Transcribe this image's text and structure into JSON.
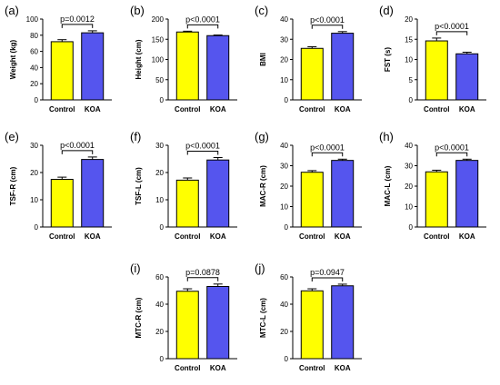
{
  "colors": {
    "control": "#ffff00",
    "koa": "#5555ee",
    "stroke": "#000000"
  },
  "chart_data": [
    {
      "type": "bar",
      "label": "(a)",
      "ylabel": "Weight (kg)",
      "categories": [
        "Control",
        "KOA"
      ],
      "values": [
        72,
        83
      ],
      "errors": [
        2.5,
        2.5
      ],
      "ylim": [
        0,
        100
      ],
      "ticks": [
        "0",
        "20",
        "40",
        "60",
        "80",
        "100"
      ],
      "pvalue": "p=0.0012"
    },
    {
      "type": "bar",
      "label": "(b)",
      "ylabel": "Height (cm)",
      "categories": [
        "Control",
        "KOA"
      ],
      "values": [
        168,
        159
      ],
      "errors": [
        2,
        1.5
      ],
      "ylim": [
        0,
        200
      ],
      "ticks": [
        "0",
        "50",
        "100",
        "150",
        "200"
      ],
      "pvalue": "p<0.0001"
    },
    {
      "type": "bar",
      "label": "(c)",
      "ylabel": "BMI",
      "categories": [
        "Control",
        "KOA"
      ],
      "values": [
        25.5,
        33
      ],
      "errors": [
        0.8,
        0.8
      ],
      "ylim": [
        0,
        40
      ],
      "ticks": [
        "0",
        "10",
        "20",
        "30",
        "40"
      ],
      "pvalue": "p<0.0001"
    },
    {
      "type": "bar",
      "label": "(d)",
      "ylabel": "FST (s)",
      "categories": [
        "Control",
        "KOA"
      ],
      "values": [
        14.6,
        11.4
      ],
      "errors": [
        0.7,
        0.4
      ],
      "ylim": [
        0,
        20
      ],
      "ticks": [
        "0",
        "5",
        "10",
        "15",
        "20"
      ],
      "pvalue": "p<0.0001"
    },
    {
      "type": "bar",
      "label": "(e)",
      "ylabel": "TSF-R (cm)",
      "categories": [
        "Control",
        "KOA"
      ],
      "values": [
        17.5,
        24.8
      ],
      "errors": [
        0.8,
        0.9
      ],
      "ylim": [
        0,
        30
      ],
      "ticks": [
        "0",
        "10",
        "20",
        "30"
      ],
      "pvalue": "p<0.0001"
    },
    {
      "type": "bar",
      "label": "(f)",
      "ylabel": "TSF-L (cm)",
      "categories": [
        "Control",
        "KOA"
      ],
      "values": [
        17.2,
        24.6
      ],
      "errors": [
        0.8,
        0.9
      ],
      "ylim": [
        0,
        30
      ],
      "ticks": [
        "0",
        "10",
        "20",
        "30"
      ],
      "pvalue": "p<0.0001"
    },
    {
      "type": "bar",
      "label": "(g)",
      "ylabel": "MAC-R (cm)",
      "categories": [
        "Control",
        "KOA"
      ],
      "values": [
        26.8,
        32.6
      ],
      "errors": [
        0.8,
        0.6
      ],
      "ylim": [
        0,
        40
      ],
      "ticks": [
        "0",
        "10",
        "20",
        "30",
        "40"
      ],
      "pvalue": "p<0.0001"
    },
    {
      "type": "bar",
      "label": "(h)",
      "ylabel": "MAC-L (cm)",
      "categories": [
        "Control",
        "KOA"
      ],
      "values": [
        27,
        32.6
      ],
      "errors": [
        0.8,
        0.6
      ],
      "ylim": [
        0,
        40
      ],
      "ticks": [
        "0",
        "10",
        "20",
        "30",
        "40"
      ],
      "pvalue": "p<0.0001"
    },
    {
      "type": "bar",
      "label": "(i)",
      "ylabel": "MTC-R (cm)",
      "categories": [
        "Control",
        "KOA"
      ],
      "values": [
        49.5,
        53
      ],
      "errors": [
        1.8,
        1.8
      ],
      "ylim": [
        0,
        60
      ],
      "ticks": [
        "0",
        "20",
        "40",
        "60"
      ],
      "pvalue": "p=0.0878"
    },
    {
      "type": "bar",
      "label": "(j)",
      "ylabel": "MTC-L (cm)",
      "categories": [
        "Control",
        "KOA"
      ],
      "values": [
        49.8,
        53.5
      ],
      "errors": [
        1.5,
        1.2
      ],
      "ylim": [
        0,
        60
      ],
      "ticks": [
        "0",
        "20",
        "40",
        "60"
      ],
      "pvalue": "p=0.0947"
    }
  ]
}
